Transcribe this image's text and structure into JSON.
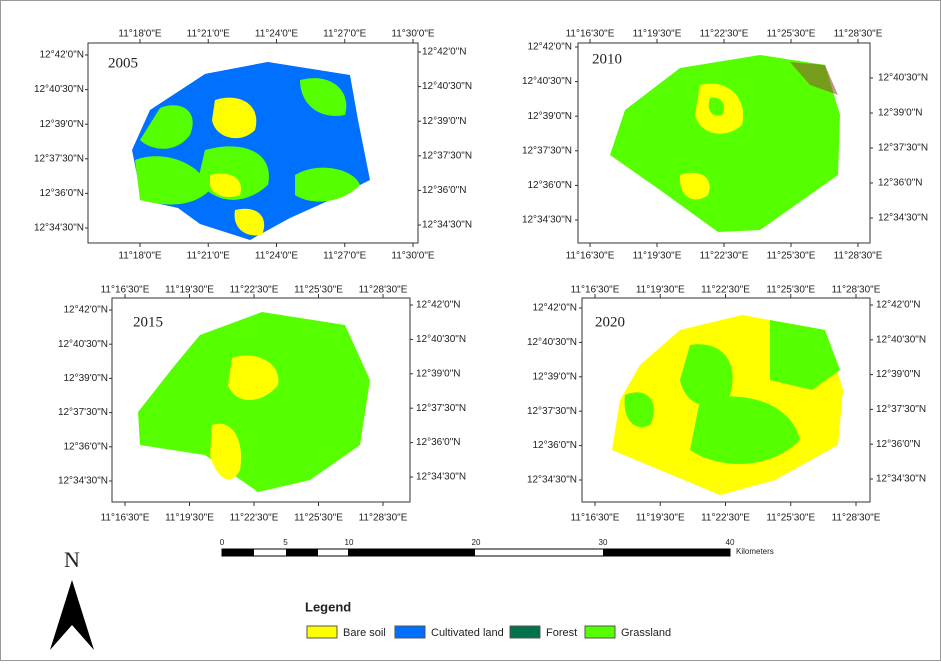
{
  "panels": [
    {
      "year": "2005",
      "lon_ticks_top": [
        "11°18'0\"E",
        "11°21'0\"E",
        "11°24'0\"E",
        "11°27'0\"E",
        "11°30'0\"E"
      ],
      "lon_ticks_bottom": [
        "11°18'0\"E",
        "11°21'0\"E",
        "11°24'0\"E",
        "11°27'0\"E",
        "11°30'0\"E"
      ],
      "lat_ticks_left": [
        "12°42'0\"N",
        "12°40'30\"N",
        "12°39'0\"N",
        "12°37'30\"N",
        "12°36'0\"N",
        "12°34'30\"N"
      ],
      "lat_ticks_right": [
        "12°42'0\"N",
        "12°40'30\"N",
        "12°39'0\"N",
        "12°37'30\"N",
        "12°36'0\"N",
        "12°34'30\"N"
      ]
    },
    {
      "year": "2010",
      "lon_ticks_top": [
        "11°16'30\"E",
        "11°19'30\"E",
        "11°22'30\"E",
        "11°25'30\"E",
        "11°28'30\"E"
      ],
      "lon_ticks_bottom": [
        "11°16'30\"E",
        "11°19'30\"E",
        "11°22'30\"E",
        "11°25'30\"E",
        "11°28'30\"E"
      ],
      "lat_ticks_left": [
        "12°42'0\"N",
        "12°40'30\"N",
        "12°39'0\"N",
        "12°37'30\"N",
        "12°36'0\"N",
        "12°34'30\"N"
      ],
      "lat_ticks_right": [
        "12°40'30\"N",
        "12°39'0\"N",
        "12°37'30\"N",
        "12°36'0\"N",
        "12°34'30\"N"
      ]
    },
    {
      "year": "2015",
      "lon_ticks_top": [
        "11°16'30\"E",
        "11°19'30\"E",
        "11°22'30\"E",
        "11°25'30\"E",
        "11°28'30\"E"
      ],
      "lon_ticks_bottom": [
        "11°16'30\"E",
        "11°19'30\"E",
        "11°22'30\"E",
        "11°25'30\"E",
        "11°28'30\"E"
      ],
      "lat_ticks_left": [
        "12°42'0\"N",
        "12°40'30\"N",
        "12°39'0\"N",
        "12°37'30\"N",
        "12°36'0\"N",
        "12°34'30\"N"
      ],
      "lat_ticks_right": [
        "12°42'0\"N",
        "12°40'30\"N",
        "12°39'0\"N",
        "12°37'30\"N",
        "12°36'0\"N",
        "12°34'30\"N"
      ]
    },
    {
      "year": "2020",
      "lon_ticks_top": [
        "11°16'30\"E",
        "11°19'30\"E",
        "11°22'30\"E",
        "11°25'30\"E",
        "11°28'30\"E"
      ],
      "lon_ticks_bottom": [
        "11°16'30\"E",
        "11°19'30\"E",
        "11°22'30\"E",
        "11°25'30\"E",
        "11°28'30\"E"
      ],
      "lat_ticks_left": [
        "12°42'0\"N",
        "12°40'30\"N",
        "12°39'0\"N",
        "12°37'30\"N",
        "12°36'0\"N",
        "12°34'30\"N"
      ],
      "lat_ticks_right": [
        "12°42'0\"N",
        "12°40'30\"N",
        "12°39'0\"N",
        "12°37'30\"N",
        "12°36'0\"N",
        "12°34'30\"N"
      ]
    }
  ],
  "north": "N",
  "scale_bar": {
    "ticks": [
      0,
      5,
      10,
      20,
      30,
      40
    ],
    "unit": "Kilometers"
  },
  "legend": {
    "title": "Legend",
    "items": [
      {
        "label": "Bare soil",
        "color": "#ffff00"
      },
      {
        "label": "Cultivated land",
        "color": "#0070ff"
      },
      {
        "label": "Forest",
        "color": "#00734c"
      },
      {
        "label": "Grassland",
        "color": "#55ff00"
      }
    ]
  }
}
